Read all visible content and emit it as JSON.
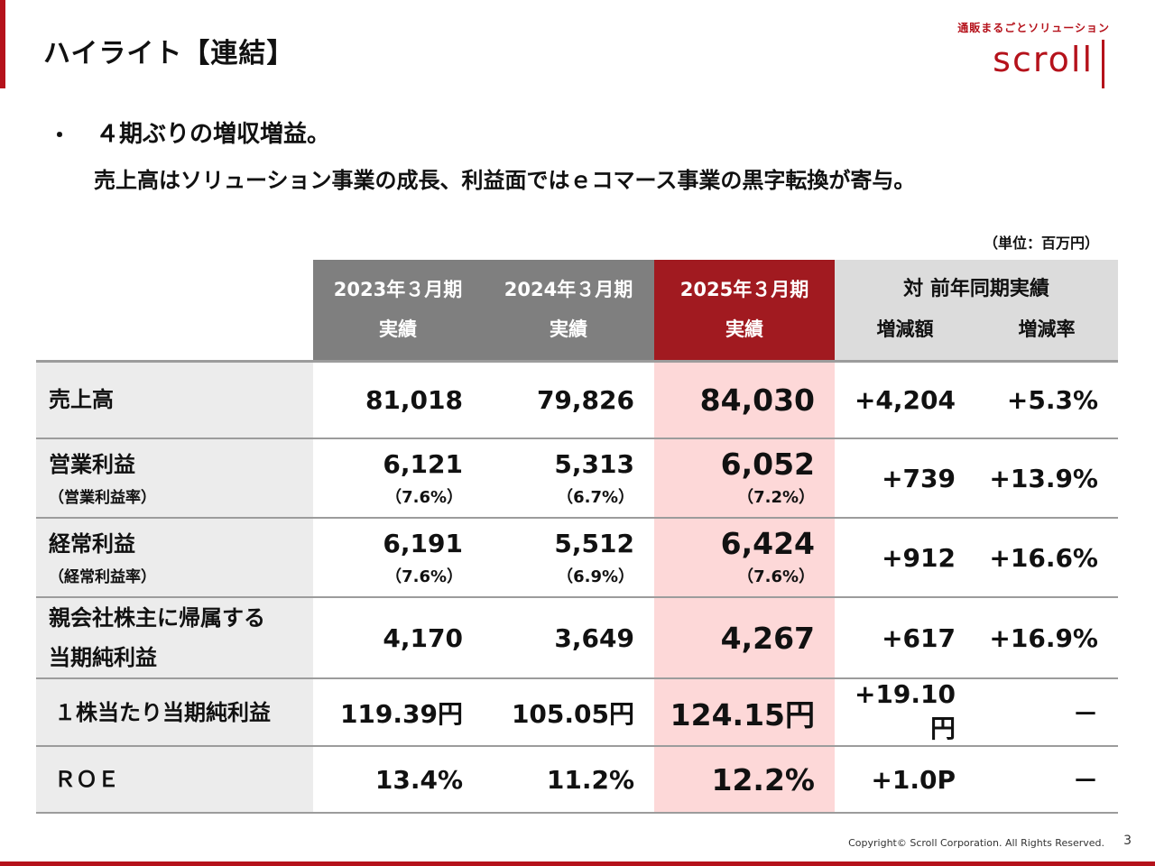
{
  "header": {
    "title": "ハイライト【連結】",
    "logo_tagline": "通販まるごとソリューション",
    "logo_word": "scroll"
  },
  "summary": {
    "bullet": "・",
    "line1": "４期ぶりの増収増益。",
    "line2": "売上高はソリューション事業の成長、利益面ではｅコマース事業の黒字転換が寄与。"
  },
  "unit": "（単位：百万円）",
  "table": {
    "columns": [
      {
        "top": "2023年３月期",
        "bottom": "実績"
      },
      {
        "top": "2024年３月期",
        "bottom": "実績"
      },
      {
        "top": "2025年３月期",
        "bottom": "実績"
      }
    ],
    "comparison_header": "対 前年同期実績",
    "change_amount_header": "増減額",
    "change_rate_header": "増減率",
    "rows": [
      {
        "label": "売上高",
        "sublabel": "",
        "values": [
          "81,018",
          "79,826",
          "84,030"
        ],
        "ratios": [
          "",
          "",
          ""
        ],
        "change": "+4,204",
        "rate": "+5.3%"
      },
      {
        "label": "営業利益",
        "sublabel": "（営業利益率）",
        "values": [
          "6,121",
          "5,313",
          "6,052"
        ],
        "ratios": [
          "（7.6%）",
          "（6.7%）",
          "（7.2%）"
        ],
        "change": "+739",
        "rate": "+13.9%"
      },
      {
        "label": "経常利益",
        "sublabel": "（経常利益率）",
        "values": [
          "6,191",
          "5,512",
          "6,424"
        ],
        "ratios": [
          "（7.6%）",
          "（6.9%）",
          "（7.6%）"
        ],
        "change": "+912",
        "rate": "+16.6%"
      },
      {
        "label": "親会社株主に帰属する",
        "sublabel": "当期純利益",
        "values": [
          "4,170",
          "3,649",
          "4,267"
        ],
        "ratios": [
          "",
          "",
          ""
        ],
        "change": "+617",
        "rate": "+16.9%"
      },
      {
        "label": "１株当たり当期純利益",
        "sublabel": "",
        "values": [
          "119.39円",
          "105.05円",
          "124.15円"
        ],
        "ratios": [
          "",
          "",
          ""
        ],
        "change": "+19.10円",
        "rate": "－"
      },
      {
        "label": "ＲＯＥ",
        "sublabel": "",
        "values": [
          "13.4%",
          "11.2%",
          "12.2%"
        ],
        "ratios": [
          "",
          "",
          ""
        ],
        "change": "+1.0P",
        "rate": "－"
      }
    ]
  },
  "footer": {
    "copyright": "Copyright© Scroll Corporation. All Rights Reserved.",
    "page_number": "3"
  }
}
